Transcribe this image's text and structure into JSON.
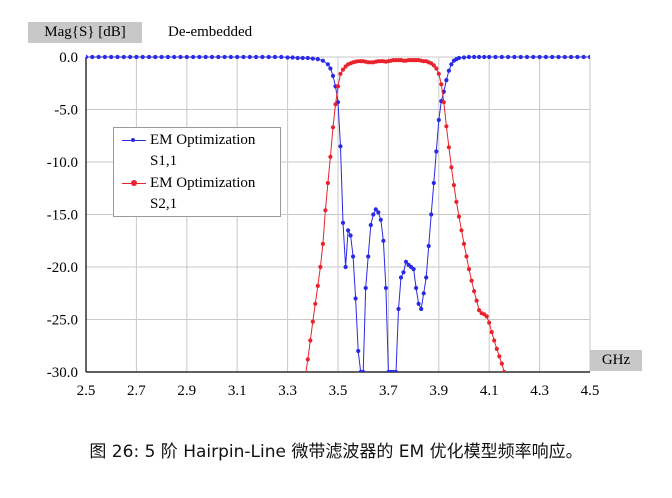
{
  "ylabel": "Mag{S} [dB]",
  "subtitle": "De-embedded",
  "xlabel": "GHz",
  "caption": "图 26: 5 阶 Hairpin-Line 微带滤波器的 EM 优化模型频率响应。",
  "chart_data": {
    "type": "line",
    "xlim": [
      2.5,
      4.5
    ],
    "ylim": [
      -30,
      0
    ],
    "xticks": [
      "2.5",
      "2.7",
      "2.9",
      "3.1",
      "3.3",
      "3.5",
      "3.7",
      "3.9",
      "4.1",
      "4.3",
      "4.5"
    ],
    "yticks": [
      "0.0",
      "-5.0",
      "-10.0",
      "-15.0",
      "-20.0",
      "-25.0",
      "-30.0"
    ],
    "grid": true,
    "legend_position": "left-middle",
    "series": [
      {
        "name_lines": [
          "EM Optimization",
          "S1,1"
        ],
        "color": "#2a2ae6",
        "x": [
          2.5,
          2.525,
          2.55,
          2.575,
          2.6,
          2.625,
          2.65,
          2.675,
          2.7,
          2.725,
          2.75,
          2.775,
          2.8,
          2.825,
          2.85,
          2.875,
          2.9,
          2.925,
          2.95,
          2.975,
          3.0,
          3.025,
          3.05,
          3.075,
          3.1,
          3.125,
          3.15,
          3.175,
          3.2,
          3.225,
          3.25,
          3.275,
          3.3,
          3.32,
          3.34,
          3.36,
          3.38,
          3.4,
          3.42,
          3.44,
          3.46,
          3.47,
          3.48,
          3.49,
          3.5,
          3.51,
          3.52,
          3.53,
          3.54,
          3.55,
          3.56,
          3.57,
          3.58,
          3.59,
          3.6,
          3.61,
          3.62,
          3.63,
          3.64,
          3.65,
          3.66,
          3.67,
          3.68,
          3.69,
          3.7,
          3.71,
          3.72,
          3.73,
          3.74,
          3.75,
          3.76,
          3.77,
          3.78,
          3.79,
          3.8,
          3.81,
          3.82,
          3.83,
          3.84,
          3.85,
          3.86,
          3.87,
          3.88,
          3.89,
          3.9,
          3.91,
          3.92,
          3.93,
          3.94,
          3.95,
          3.96,
          3.97,
          3.98,
          4.0,
          4.02,
          4.04,
          4.06,
          4.08,
          4.1,
          4.125,
          4.15,
          4.175,
          4.2,
          4.225,
          4.25,
          4.275,
          4.3,
          4.325,
          4.35,
          4.375,
          4.4,
          4.425,
          4.45,
          4.475,
          4.5
        ],
        "y": [
          0,
          0,
          0,
          0,
          0,
          0,
          0,
          0,
          0,
          0,
          0,
          0,
          0,
          0,
          0,
          0,
          0,
          0,
          0,
          0,
          0,
          0,
          0,
          0,
          0,
          0,
          0,
          0,
          0,
          0,
          0,
          0,
          -0.05,
          -0.05,
          -0.1,
          -0.1,
          -0.1,
          -0.15,
          -0.2,
          -0.35,
          -0.7,
          -1.1,
          -1.8,
          -2.8,
          -4.3,
          -8.5,
          -15.8,
          -20.0,
          -16.5,
          -17.0,
          -19.0,
          -23.0,
          -28.0,
          -30,
          -30,
          -22.0,
          -19.0,
          -16.0,
          -15.0,
          -14.5,
          -14.8,
          -15.5,
          -17.5,
          -22.0,
          -30,
          -30,
          -30,
          -30,
          -24.0,
          -21.0,
          -20.5,
          -19.5,
          -19.8,
          -20.0,
          -20.2,
          -22.0,
          -23.5,
          -24.0,
          -22.5,
          -21.0,
          -18.0,
          -15.0,
          -12.0,
          -9.0,
          -6.0,
          -4.2,
          -3.3,
          -2.2,
          -1.3,
          -0.7,
          -0.35,
          -0.2,
          -0.1,
          -0.05,
          0,
          0,
          0,
          0,
          0,
          0,
          0,
          0,
          0,
          0,
          0,
          0,
          0,
          0,
          0,
          0,
          0,
          0,
          0,
          0,
          0
        ]
      },
      {
        "name_lines": [
          "EM Optimization",
          "S2,1"
        ],
        "color": "#e8232d",
        "x": [
          3.37,
          3.38,
          3.39,
          3.4,
          3.41,
          3.42,
          3.43,
          3.44,
          3.45,
          3.46,
          3.47,
          3.48,
          3.49,
          3.5,
          3.51,
          3.52,
          3.53,
          3.54,
          3.55,
          3.56,
          3.57,
          3.58,
          3.59,
          3.6,
          3.61,
          3.62,
          3.63,
          3.64,
          3.65,
          3.66,
          3.67,
          3.68,
          3.69,
          3.7,
          3.71,
          3.72,
          3.73,
          3.74,
          3.75,
          3.76,
          3.77,
          3.78,
          3.79,
          3.8,
          3.81,
          3.82,
          3.83,
          3.84,
          3.85,
          3.86,
          3.87,
          3.88,
          3.89,
          3.9,
          3.91,
          3.92,
          3.93,
          3.94,
          3.95,
          3.96,
          3.97,
          3.98,
          3.99,
          4.0,
          4.01,
          4.02,
          4.03,
          4.04,
          4.05,
          4.06,
          4.07,
          4.08,
          4.09,
          4.1,
          4.11,
          4.12,
          4.13,
          4.14,
          4.15,
          4.16
        ],
        "y": [
          -30.5,
          -28.8,
          -27.0,
          -25.2,
          -23.5,
          -21.8,
          -20.0,
          -17.8,
          -14.6,
          -12.0,
          -9.5,
          -6.7,
          -4.5,
          -2.8,
          -1.6,
          -1.2,
          -0.9,
          -0.7,
          -0.6,
          -0.5,
          -0.45,
          -0.4,
          -0.4,
          -0.4,
          -0.45,
          -0.5,
          -0.5,
          -0.5,
          -0.45,
          -0.4,
          -0.4,
          -0.4,
          -0.45,
          -0.4,
          -0.35,
          -0.3,
          -0.3,
          -0.3,
          -0.3,
          -0.35,
          -0.35,
          -0.3,
          -0.3,
          -0.3,
          -0.3,
          -0.3,
          -0.35,
          -0.4,
          -0.4,
          -0.5,
          -0.6,
          -0.8,
          -1.1,
          -1.6,
          -2.6,
          -4.3,
          -6.6,
          -8.6,
          -10.5,
          -12.2,
          -13.8,
          -15.2,
          -16.5,
          -17.8,
          -19.0,
          -20.2,
          -21.3,
          -22.3,
          -23.2,
          -24.1,
          -24.4,
          -24.5,
          -24.7,
          -25.3,
          -26.2,
          -27.0,
          -27.8,
          -28.5,
          -29.2,
          -30.0
        ]
      }
    ]
  }
}
